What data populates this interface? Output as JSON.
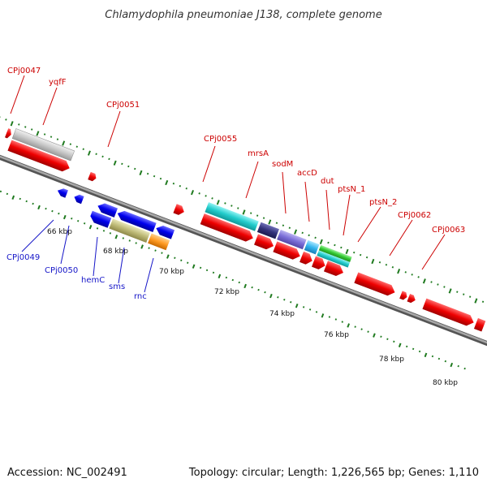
{
  "title": "Chlamydophila pneumoniae J138, complete genome",
  "footer": {
    "accession": "Accession: NC_002491",
    "summary": "Topology: circular; Length: 1,226,565 bp; Genes: 1,110"
  },
  "colors": {
    "forward_label": "#cc0000",
    "reverse_label": "#1515c8",
    "forward_gene": "#ee0000",
    "reverse_gene": "#0000ee",
    "backbone": "#808080",
    "tick": "#1f7a1f"
  },
  "scale_labels": [
    "66 kbp",
    "68 kbp",
    "70 kbp",
    "72 kbp",
    "74 kbp",
    "76 kbp",
    "78 kbp",
    "80 kbp"
  ],
  "forward_labels": [
    "CPj0047",
    "yqfF",
    "CPj0051",
    "CPj0055",
    "mrsA",
    "sodM",
    "accD",
    "dut",
    "ptsN_1",
    "ptsN_2",
    "CPj0062",
    "CPj0063"
  ],
  "reverse_labels": [
    "CPj0049",
    "CPj0050",
    "hemC",
    "sms",
    "rnc"
  ]
}
